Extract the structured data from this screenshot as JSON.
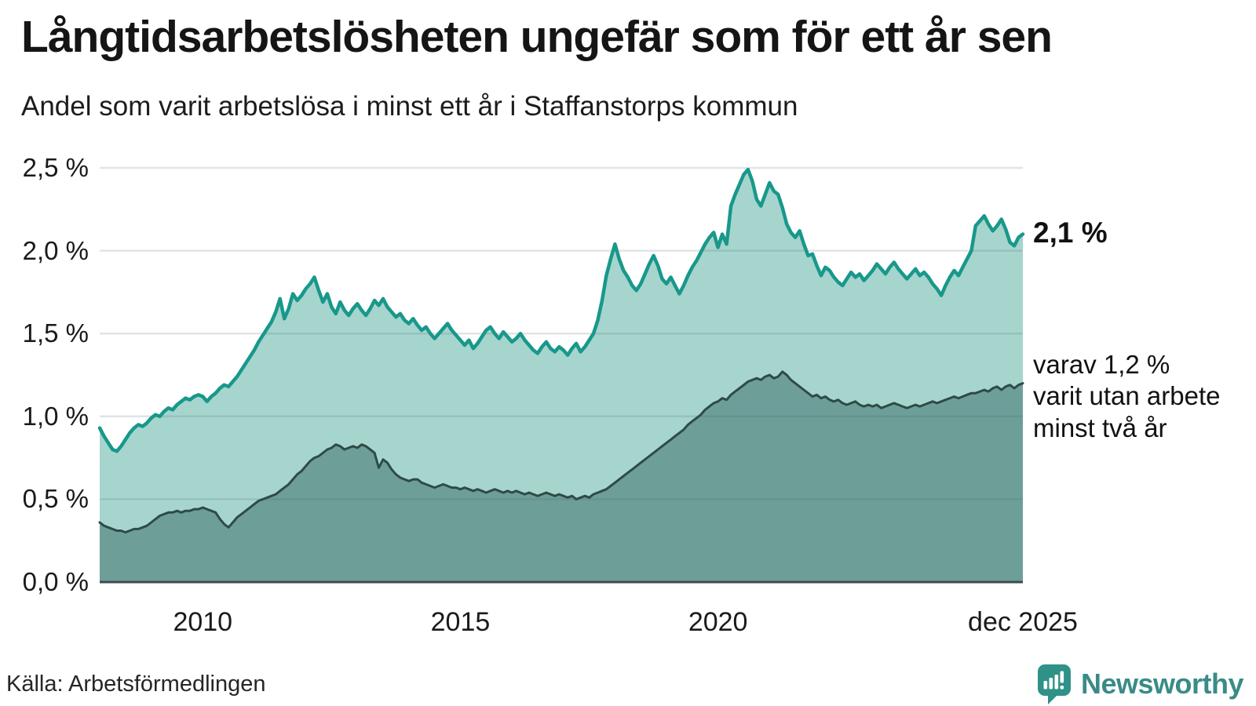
{
  "title": "Långtidsarbetslösheten ungefär som för ett år sen",
  "subtitle": "Andel som varit arbetslösa i minst ett år i Staffanstorps kommun",
  "source": "Källa: Arbetsförmedlingen",
  "branding": {
    "name": "Newsworthy",
    "icon": "speech-bubble-bar-chart-icon",
    "icon_color": "#2f9188",
    "text_color": "#3a8b87"
  },
  "annotations": {
    "total_end_label": "2,1 %",
    "subset_label_lines": [
      "varav 1,2 %",
      "varit utan arbete",
      "minst två år"
    ]
  },
  "colors": {
    "background": "#ffffff",
    "title_text": "#151515",
    "gridline": "rgba(75,92,102,0.17)",
    "baseline": "#3d4a51",
    "total_line": "#18988b",
    "total_fill": "#a6d5ce",
    "subset_line": "#2e4b47",
    "subset_fill": "#6e9e98"
  },
  "chart_data": {
    "type": "area",
    "title": "Långtidsarbetslösheten ungefär som för ett år sen",
    "subtitle": "Andel som varit arbetslösa i minst ett år i Staffanstorps kommun",
    "x_start": "2008-01",
    "x_end": "2025-12",
    "x_frequency": "monthly",
    "ylim": [
      0,
      2.5
    ],
    "grid": true,
    "y_ticks": [
      {
        "label": "0,0 %",
        "value": 0.0
      },
      {
        "label": "0,5 %",
        "value": 0.5
      },
      {
        "label": "1,0 %",
        "value": 1.0
      },
      {
        "label": "1,5 %",
        "value": 1.5
      },
      {
        "label": "2,0 %",
        "value": 2.0
      },
      {
        "label": "2,5 %",
        "value": 2.5
      }
    ],
    "x_ticks": [
      {
        "label": "2010",
        "index": 24
      },
      {
        "label": "2015",
        "index": 84
      },
      {
        "label": "2020",
        "index": 144
      },
      {
        "label": "dec 2025",
        "index": 215
      }
    ],
    "end_markers": {
      "total": 2.1,
      "two_years": 1.2
    },
    "series": [
      {
        "name": "Andel arbetslösa minst ett år",
        "end_label": "2,1 %",
        "values": [
          0.93,
          0.88,
          0.84,
          0.8,
          0.79,
          0.82,
          0.86,
          0.9,
          0.93,
          0.95,
          0.94,
          0.96,
          0.99,
          1.01,
          1.0,
          1.03,
          1.05,
          1.04,
          1.07,
          1.09,
          1.11,
          1.1,
          1.12,
          1.13,
          1.12,
          1.09,
          1.12,
          1.14,
          1.17,
          1.19,
          1.18,
          1.21,
          1.24,
          1.28,
          1.32,
          1.36,
          1.4,
          1.45,
          1.49,
          1.53,
          1.57,
          1.63,
          1.71,
          1.59,
          1.65,
          1.74,
          1.7,
          1.73,
          1.77,
          1.8,
          1.84,
          1.76,
          1.69,
          1.74,
          1.66,
          1.62,
          1.69,
          1.64,
          1.61,
          1.65,
          1.68,
          1.64,
          1.61,
          1.65,
          1.7,
          1.67,
          1.71,
          1.66,
          1.63,
          1.6,
          1.62,
          1.58,
          1.56,
          1.59,
          1.55,
          1.52,
          1.54,
          1.5,
          1.47,
          1.5,
          1.53,
          1.56,
          1.52,
          1.49,
          1.46,
          1.43,
          1.46,
          1.41,
          1.44,
          1.48,
          1.52,
          1.54,
          1.5,
          1.47,
          1.51,
          1.48,
          1.45,
          1.47,
          1.5,
          1.46,
          1.43,
          1.4,
          1.38,
          1.42,
          1.45,
          1.41,
          1.39,
          1.42,
          1.4,
          1.37,
          1.41,
          1.44,
          1.39,
          1.42,
          1.46,
          1.5,
          1.58,
          1.7,
          1.85,
          1.95,
          2.04,
          1.95,
          1.88,
          1.84,
          1.79,
          1.76,
          1.8,
          1.86,
          1.92,
          1.97,
          1.91,
          1.83,
          1.8,
          1.84,
          1.79,
          1.74,
          1.79,
          1.85,
          1.9,
          1.94,
          1.99,
          2.04,
          2.08,
          2.11,
          2.02,
          2.1,
          2.04,
          2.27,
          2.34,
          2.4,
          2.46,
          2.49,
          2.42,
          2.31,
          2.27,
          2.34,
          2.41,
          2.36,
          2.34,
          2.26,
          2.16,
          2.11,
          2.08,
          2.12,
          2.04,
          1.97,
          1.98,
          1.91,
          1.85,
          1.9,
          1.88,
          1.84,
          1.81,
          1.79,
          1.83,
          1.87,
          1.84,
          1.86,
          1.82,
          1.85,
          1.88,
          1.92,
          1.89,
          1.86,
          1.9,
          1.93,
          1.89,
          1.86,
          1.83,
          1.86,
          1.89,
          1.85,
          1.87,
          1.84,
          1.8,
          1.77,
          1.73,
          1.79,
          1.84,
          1.88,
          1.85,
          1.9,
          1.95,
          2.0,
          2.15,
          2.18,
          2.21,
          2.16,
          2.12,
          2.15,
          2.19,
          2.13,
          2.05,
          2.03,
          2.08,
          2.1
        ]
      },
      {
        "name": "varav utan arbete minst två år",
        "end_label": "1,2 %",
        "values": [
          0.36,
          0.34,
          0.33,
          0.32,
          0.31,
          0.31,
          0.3,
          0.31,
          0.32,
          0.32,
          0.33,
          0.34,
          0.36,
          0.38,
          0.4,
          0.41,
          0.42,
          0.42,
          0.43,
          0.42,
          0.43,
          0.43,
          0.44,
          0.44,
          0.45,
          0.44,
          0.43,
          0.42,
          0.38,
          0.35,
          0.33,
          0.36,
          0.39,
          0.41,
          0.43,
          0.45,
          0.47,
          0.49,
          0.5,
          0.51,
          0.52,
          0.53,
          0.55,
          0.57,
          0.59,
          0.62,
          0.65,
          0.67,
          0.7,
          0.73,
          0.75,
          0.76,
          0.78,
          0.8,
          0.81,
          0.83,
          0.82,
          0.8,
          0.81,
          0.82,
          0.81,
          0.83,
          0.82,
          0.8,
          0.78,
          0.69,
          0.74,
          0.72,
          0.68,
          0.65,
          0.63,
          0.62,
          0.61,
          0.62,
          0.62,
          0.6,
          0.59,
          0.58,
          0.57,
          0.58,
          0.59,
          0.58,
          0.57,
          0.57,
          0.56,
          0.57,
          0.56,
          0.55,
          0.56,
          0.55,
          0.54,
          0.55,
          0.56,
          0.55,
          0.54,
          0.55,
          0.54,
          0.55,
          0.54,
          0.53,
          0.54,
          0.53,
          0.52,
          0.53,
          0.54,
          0.53,
          0.52,
          0.53,
          0.52,
          0.51,
          0.52,
          0.5,
          0.51,
          0.52,
          0.51,
          0.53,
          0.54,
          0.55,
          0.56,
          0.58,
          0.6,
          0.62,
          0.64,
          0.66,
          0.68,
          0.7,
          0.72,
          0.74,
          0.76,
          0.78,
          0.8,
          0.82,
          0.84,
          0.86,
          0.88,
          0.9,
          0.92,
          0.95,
          0.97,
          0.99,
          1.01,
          1.04,
          1.06,
          1.08,
          1.09,
          1.11,
          1.1,
          1.13,
          1.15,
          1.17,
          1.19,
          1.21,
          1.22,
          1.23,
          1.22,
          1.24,
          1.25,
          1.23,
          1.24,
          1.27,
          1.25,
          1.22,
          1.2,
          1.18,
          1.16,
          1.14,
          1.12,
          1.13,
          1.11,
          1.12,
          1.1,
          1.09,
          1.1,
          1.08,
          1.07,
          1.08,
          1.09,
          1.07,
          1.06,
          1.07,
          1.06,
          1.07,
          1.05,
          1.06,
          1.07,
          1.08,
          1.07,
          1.06,
          1.05,
          1.06,
          1.07,
          1.06,
          1.07,
          1.08,
          1.09,
          1.08,
          1.09,
          1.1,
          1.11,
          1.12,
          1.11,
          1.12,
          1.13,
          1.14,
          1.14,
          1.15,
          1.16,
          1.15,
          1.17,
          1.18,
          1.16,
          1.18,
          1.19,
          1.17,
          1.19,
          1.2
        ]
      }
    ]
  }
}
